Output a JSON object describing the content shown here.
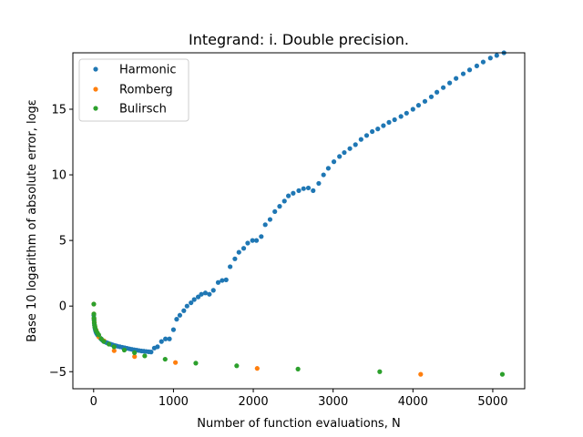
{
  "chart_data": {
    "type": "scatter",
    "title": "Integrand: i. Double precision.",
    "xlabel": "Number of function evaluations, N",
    "ylabel": "Base 10 logarithm of absolute error, logε",
    "xlim": [
      -260,
      5400
    ],
    "ylim": [
      -6.3,
      19.3
    ],
    "xticks": [
      0,
      1000,
      2000,
      3000,
      4000,
      5000
    ],
    "yticks": [
      -5,
      0,
      5,
      10,
      15
    ],
    "grid": false,
    "legend_position": "top-left",
    "series": [
      {
        "name": "Harmonic",
        "color": "#1f77b4",
        "x": [
          2,
          5,
          8,
          11,
          14,
          18,
          22,
          26,
          30,
          35,
          40,
          45,
          50,
          55,
          60,
          70,
          80,
          90,
          100,
          110,
          120,
          140,
          160,
          180,
          200,
          220,
          240,
          260,
          280,
          300,
          330,
          360,
          390,
          420,
          450,
          480,
          510,
          540,
          570,
          600,
          630,
          660,
          690,
          720,
          760,
          800,
          850,
          900,
          950,
          1000,
          1040,
          1080,
          1130,
          1170,
          1220,
          1260,
          1310,
          1350,
          1400,
          1450,
          1500,
          1560,
          1610,
          1660,
          1710,
          1770,
          1820,
          1880,
          1930,
          1990,
          2040,
          2100,
          2150,
          2210,
          2270,
          2330,
          2390,
          2440,
          2500,
          2570,
          2630,
          2690,
          2750,
          2820,
          2880,
          2940,
          3010,
          3080,
          3140,
          3210,
          3280,
          3350,
          3420,
          3490,
          3560,
          3630,
          3700,
          3770,
          3850,
          3920,
          4000,
          4070,
          4150,
          4230,
          4300,
          4380,
          4460,
          4540,
          4630,
          4710,
          4800,
          4880,
          4970,
          5050,
          5140
        ],
        "y": [
          -0.7,
          -1.0,
          -1.25,
          -1.45,
          -1.6,
          -1.72,
          -1.82,
          -1.9,
          -1.98,
          -2.05,
          -2.1,
          -2.15,
          -2.2,
          -2.24,
          -2.28,
          -2.35,
          -2.42,
          -2.48,
          -2.54,
          -2.6,
          -2.65,
          -2.72,
          -2.78,
          -2.83,
          -2.88,
          -2.92,
          -2.96,
          -3.0,
          -3.03,
          -3.06,
          -3.1,
          -3.14,
          -3.18,
          -3.22,
          -3.26,
          -3.3,
          -3.33,
          -3.36,
          -3.39,
          -3.42,
          -3.44,
          -3.46,
          -3.48,
          -3.5,
          -3.2,
          -3.1,
          -2.7,
          -2.5,
          -2.5,
          -1.8,
          -1.0,
          -0.7,
          -0.35,
          0.0,
          0.25,
          0.5,
          0.7,
          0.9,
          1.0,
          0.9,
          1.2,
          1.8,
          1.95,
          2.0,
          3.0,
          3.6,
          4.1,
          4.4,
          4.8,
          5.0,
          5.0,
          5.3,
          6.2,
          6.6,
          7.2,
          7.6,
          8.0,
          8.4,
          8.6,
          8.8,
          8.95,
          9.0,
          8.8,
          9.35,
          10.0,
          10.5,
          11.0,
          11.4,
          11.7,
          12.0,
          12.3,
          12.7,
          13.0,
          13.3,
          13.5,
          13.75,
          14.0,
          14.2,
          14.45,
          14.7,
          15.0,
          15.3,
          15.6,
          15.95,
          16.3,
          16.65,
          17.0,
          17.35,
          17.7,
          18.0,
          18.3,
          18.6,
          18.9,
          19.1,
          19.3
        ]
      },
      {
        "name": "Romberg",
        "color": "#ff7f0e",
        "x": [
          2,
          3,
          5,
          9,
          17,
          33,
          65,
          129,
          257,
          513,
          1025,
          2049,
          4097
        ],
        "y": [
          0.15,
          -0.6,
          -0.95,
          -1.25,
          -1.55,
          -1.85,
          -2.35,
          -2.65,
          -3.4,
          -3.85,
          -4.3,
          -4.75,
          -5.2
        ]
      },
      {
        "name": "Bulirsch",
        "color": "#2ca02c",
        "x": [
          2,
          3,
          4,
          6,
          8,
          12,
          16,
          24,
          32,
          48,
          64,
          96,
          128,
          192,
          256,
          384,
          512,
          640,
          896,
          1280,
          1792,
          2560,
          3584,
          5120
        ],
        "y": [
          0.15,
          -0.6,
          -0.9,
          -1.1,
          -1.3,
          -1.45,
          -1.6,
          -1.75,
          -1.9,
          -2.05,
          -2.2,
          -2.5,
          -2.7,
          -2.9,
          -3.1,
          -3.35,
          -3.55,
          -3.8,
          -4.05,
          -4.35,
          -4.55,
          -4.8,
          -5.0,
          -5.2
        ]
      }
    ]
  }
}
